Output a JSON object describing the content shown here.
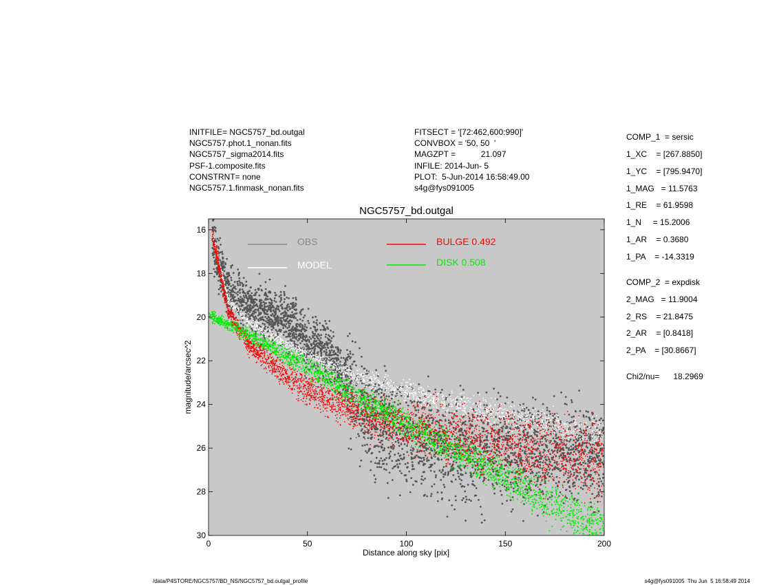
{
  "header": {
    "left": [
      "INITFILE= NGC5757_bd.outgal",
      "NGC5757.phot.1_nonan.fits",
      "NGC5757_sigma2014.fits",
      "PSF-1.composite.fits",
      "CONSTRNT= none",
      "NGC5757.1.finmask_nonan.fits"
    ],
    "middle": [
      "FITSECT = '[72:462,600:990]'",
      "CONVBOX = '50, 50  '",
      "MAGZPT =           21.097",
      "INFILE: 2014-Jun- 5",
      "PLOT:  5-Jun-2014 16:58:49.00",
      "s4g@fys091005"
    ]
  },
  "params": [
    "COMP_1  = sersic",
    "1_XC    = [267.8850]",
    "1_YC    = [795.9470]",
    "1_MAG   = 11.5763",
    "1_RE    = 61.9598",
    "1_N     = 15.2006",
    "1_AR    = 0.3680",
    "1_PA    = -14.3319",
    "COMP_2  = expdisk",
    "2_MAG   = 11.9004",
    "2_RS    = 21.8475",
    "2_AR    = [0.8418]",
    "2_PA    = [30.8667]",
    "Chi2/nu=      18.2969"
  ],
  "footer": {
    "left": "/data/P4STORE/NGC5757/BD_NS/NGC5757_bd.outgal_profile",
    "right": "s4g@fys091005  Thu Jun  5 16:58:49 2014"
  },
  "colors": {
    "background": "#c8c8c8",
    "obs": "#555555",
    "model": "#ffffff",
    "bulge": "#ff0000",
    "disk": "#00ee00"
  },
  "chart_data": {
    "type": "scatter",
    "title": "NGC5757_bd.outgal",
    "xlabel": "Distance along sky [pix]",
    "ylabel": "magnitude/arcsec^2",
    "xlim": [
      0,
      200
    ],
    "ylim": [
      30,
      15.5
    ],
    "y_inverted": true,
    "xticks": [
      0,
      50,
      100,
      150,
      200
    ],
    "yticks": [
      16,
      18,
      20,
      22,
      24,
      26,
      28,
      30
    ],
    "legend": [
      {
        "name": "OBS",
        "color": "#888888"
      },
      {
        "name": "MODEL",
        "color": "#ffffff"
      },
      {
        "name": "BULGE  0.492",
        "color": "#ff0000"
      },
      {
        "name": "DISK  0.508",
        "color": "#00ee00"
      }
    ],
    "series": [
      {
        "name": "OBS",
        "x": [
          2,
          10,
          20,
          30,
          40,
          50,
          60,
          70,
          80,
          100,
          120,
          150,
          180,
          200
        ],
        "y": [
          16.5,
          18.9,
          19.5,
          19.8,
          20.2,
          21.1,
          21.6,
          23.0,
          24.5,
          25.5,
          26.0,
          26.2,
          26.3,
          26.3
        ]
      },
      {
        "name": "MODEL",
        "x": [
          2,
          10,
          20,
          40,
          60,
          80,
          100,
          120,
          150,
          180,
          200
        ],
        "y": [
          16.2,
          19.2,
          20.2,
          21.3,
          22.2,
          22.9,
          23.4,
          23.9,
          24.5,
          25.0,
          25.3
        ]
      },
      {
        "name": "BULGE  0.492",
        "x": [
          2,
          10,
          20,
          40,
          60,
          80,
          100,
          120,
          150,
          180,
          200
        ],
        "y": [
          16.2,
          19.8,
          21.2,
          22.8,
          23.8,
          24.5,
          25.0,
          25.4,
          25.9,
          26.4,
          26.6
        ]
      },
      {
        "name": "DISK  0.508",
        "x": [
          0,
          20,
          40,
          60,
          80,
          100,
          120,
          140,
          160,
          180,
          200
        ],
        "y": [
          19.9,
          20.8,
          21.8,
          22.8,
          23.9,
          24.9,
          25.9,
          26.9,
          27.9,
          28.9,
          29.8
        ]
      }
    ]
  }
}
